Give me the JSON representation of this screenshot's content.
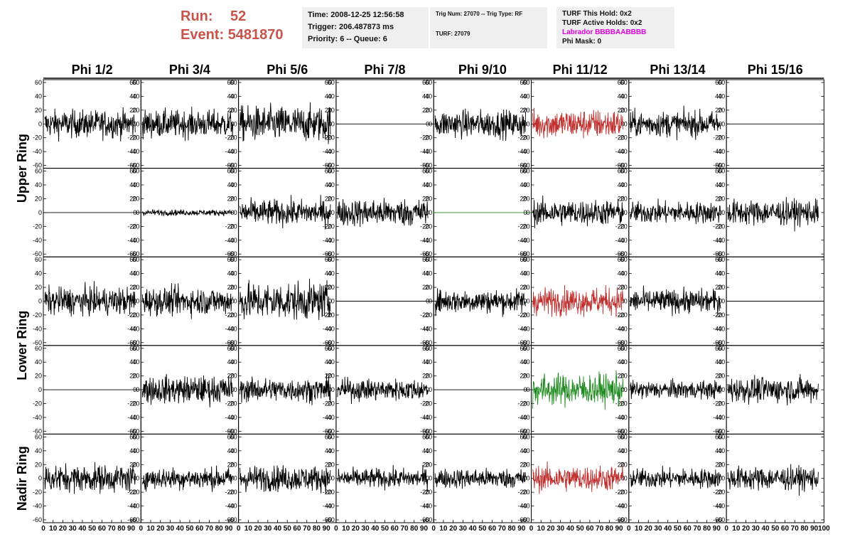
{
  "header": {
    "run_label": "Run:",
    "run_value": "52",
    "event_label": "Event:",
    "event_value": "5481870",
    "time": "Time: 2008-12-25 12:56:58",
    "trigger": "Trigger: 206.487873 ms",
    "priority_queue": "Priority: 6 -- Queue: 6",
    "trig_num_type": "Trig Num: 27070 -- Trig Type: RF",
    "turf": "TURF: 27079",
    "turf_this_hold": "TURF This Hold: 0x2",
    "turf_active_holds": "TURF Active Holds: 0x2",
    "labrador": "Labrador BBBBAABBBB",
    "phi_mask": "Phi Mask: 0"
  },
  "colors": {
    "run_text": "#c8534a",
    "labrador": "#e000e0",
    "trace_default": "#000000",
    "trace_red": "#c0302f",
    "trace_green": "#1f8a1f"
  },
  "chart_data": {
    "type": "line",
    "columns": [
      "Phi 1/2",
      "Phi 3/4",
      "Phi 5/6",
      "Phi 7/8",
      "Phi 9/10",
      "Phi 11/12",
      "Phi 13/14",
      "Phi 15/16"
    ],
    "row_groups": [
      {
        "label": "Upper Ring",
        "rows": [
          0,
          1
        ]
      },
      {
        "label": "Lower Ring",
        "rows": [
          2,
          3
        ]
      },
      {
        "label": "Nadir Ring",
        "rows": [
          4
        ]
      }
    ],
    "ylim": [
      -60,
      60
    ],
    "xlim": [
      0,
      100
    ],
    "y_ticks": [
      "60",
      "40",
      "20",
      "0",
      "-20",
      "-40",
      "-60"
    ],
    "x_ticks": [
      "0",
      "10",
      "20",
      "30",
      "40",
      "50",
      "60",
      "70",
      "80",
      "90",
      "100"
    ],
    "amplitudes": [
      [
        14,
        14,
        18,
        0,
        14,
        15,
        13,
        0
      ],
      [
        0,
        3,
        13,
        14,
        0,
        13,
        11,
        13
      ],
      [
        14,
        14,
        19,
        0,
        12,
        14,
        12,
        0
      ],
      [
        0,
        14,
        12,
        11,
        0,
        16,
        9,
        13
      ],
      [
        14,
        11,
        13,
        10,
        10,
        13,
        10,
        12
      ]
    ],
    "trace_colors": [
      [
        "k",
        "k",
        "k",
        "k",
        "k",
        "r",
        "k",
        "k"
      ],
      [
        "k",
        "k",
        "k",
        "k",
        "g",
        "k",
        "k",
        "k"
      ],
      [
        "k",
        "k",
        "k",
        "k",
        "k",
        "r",
        "k",
        "k"
      ],
      [
        "k",
        "k",
        "k",
        "k",
        "k",
        "g",
        "k",
        "k"
      ],
      [
        "k",
        "k",
        "k",
        "k",
        "k",
        "r",
        "k",
        "k"
      ]
    ]
  }
}
